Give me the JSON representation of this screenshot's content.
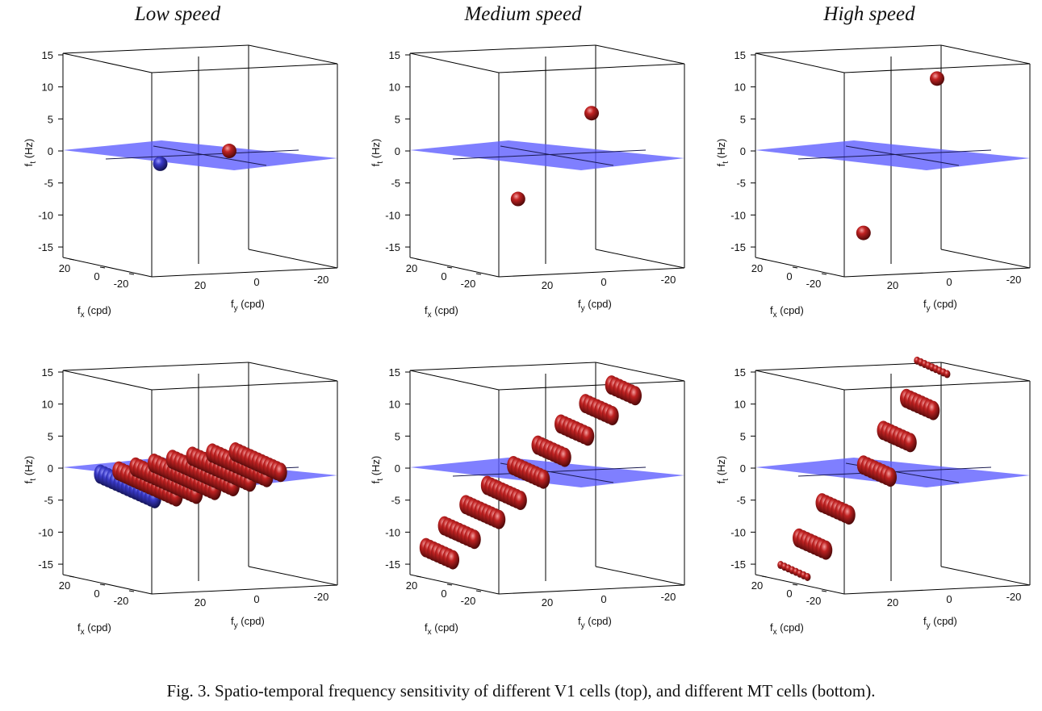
{
  "figure": {
    "columns": [
      "Low speed",
      "Medium speed",
      "High speed"
    ],
    "caption": "Fig. 3. Spatio-temporal frequency sensitivity of different V1 cells (top), and different MT cells  (bottom)."
  },
  "colors": {
    "plane": "#5b5bff",
    "blob": "#a01818",
    "blob_blue": "#2a2a9a",
    "frame": "#000000"
  },
  "chart_data": [
    {
      "type": "scatter",
      "id": "v1-low",
      "title": "",
      "xlabel": "f_x (cpd)",
      "ylabel": "f_y (cpd)",
      "zlabel": "f_t (Hz)",
      "xticks": [
        "20",
        "0",
        "-20"
      ],
      "yticks": [
        "20",
        "0",
        "-20"
      ],
      "zticks": [
        "15",
        "10",
        "5",
        "0",
        "-5",
        "-10",
        "-15"
      ],
      "zlim": [
        -16,
        15
      ],
      "grid": false,
      "planes": [
        0
      ],
      "blobs": [
        {
          "ft": -2,
          "s": -0.25,
          "len": 0,
          "color": "blue"
        },
        {
          "ft": 0,
          "s": 0.2,
          "len": 0,
          "color": "red"
        }
      ]
    },
    {
      "type": "scatter",
      "id": "v1-medium",
      "title": "",
      "xlabel": "f_x (cpd)",
      "ylabel": "f_y (cpd)",
      "zlabel": "f_t (Hz)",
      "xticks": [
        "20",
        "0",
        "-20"
      ],
      "yticks": [
        "20",
        "0",
        "-20"
      ],
      "zticks": [
        "15",
        "10",
        "5",
        "0",
        "-5",
        "-10",
        "-15"
      ],
      "zlim": [
        -16,
        15
      ],
      "grid": false,
      "planes": [
        0
      ],
      "blobs": [
        {
          "ft": -7.5,
          "s": -0.18,
          "len": 0,
          "color": "red"
        },
        {
          "ft": 5.9,
          "s": 0.3,
          "len": 0,
          "color": "red"
        }
      ]
    },
    {
      "type": "scatter",
      "id": "v1-high",
      "title": "",
      "xlabel": "f_x (cpd)",
      "ylabel": "f_y (cpd)",
      "zlabel": "f_t (Hz)",
      "xticks": [
        "20",
        "0",
        "-20"
      ],
      "yticks": [
        "20",
        "0",
        "-20"
      ],
      "zticks": [
        "15",
        "10",
        "5",
        "0",
        "-5",
        "-10",
        "-15"
      ],
      "zlim": [
        -16,
        15
      ],
      "grid": false,
      "planes": [
        0
      ],
      "blobs": [
        {
          "ft": -12.8,
          "s": -0.18,
          "len": 0,
          "color": "red"
        },
        {
          "ft": 11.3,
          "s": 0.3,
          "len": 0,
          "color": "red"
        }
      ]
    },
    {
      "type": "scatter",
      "id": "mt-low",
      "title": "",
      "xlabel": "f_x (cpd)",
      "ylabel": "f_y (cpd)",
      "zlabel": "f_t (Hz)",
      "xticks": [
        "20",
        "0",
        "-20"
      ],
      "yticks": [
        "20",
        "0",
        "-20"
      ],
      "zticks": [
        "15",
        "10",
        "5",
        "0",
        "-5",
        "-10",
        "-15"
      ],
      "zlim": [
        -16,
        15
      ],
      "grid": false,
      "planes": [
        0
      ],
      "blobs": [
        {
          "ft": -3,
          "s": -0.45,
          "len": 0.38,
          "color": "blue"
        },
        {
          "ft": -2.6,
          "s": -0.32,
          "len": 0.4,
          "color": "red"
        },
        {
          "ft": -2.1,
          "s": -0.2,
          "len": 0.42,
          "color": "red"
        },
        {
          "ft": -1.5,
          "s": -0.08,
          "len": 0.42,
          "color": "red"
        },
        {
          "ft": -0.9,
          "s": 0.04,
          "len": 0.42,
          "color": "red"
        },
        {
          "ft": -0.3,
          "s": 0.16,
          "len": 0.4,
          "color": "red"
        },
        {
          "ft": 0.3,
          "s": 0.28,
          "len": 0.38,
          "color": "red"
        },
        {
          "ft": 0.8,
          "s": 0.4,
          "len": 0.32,
          "color": "red"
        }
      ]
    },
    {
      "type": "scatter",
      "id": "mt-medium",
      "title": "",
      "xlabel": "f_x (cpd)",
      "ylabel": "f_y (cpd)",
      "zlabel": "f_t (Hz)",
      "xticks": [
        "20",
        "0",
        "-20"
      ],
      "yticks": [
        "20",
        "0",
        "-20"
      ],
      "zticks": [
        "15",
        "10",
        "5",
        "0",
        "-5",
        "-10",
        "-15"
      ],
      "zlim": [
        -16,
        15
      ],
      "grid": false,
      "planes": [
        0
      ],
      "blobs": [
        {
          "ft": -13.5,
          "s": -0.68,
          "len": 0.2,
          "color": "red"
        },
        {
          "ft": -10.2,
          "s": -0.55,
          "len": 0.22,
          "color": "red"
        },
        {
          "ft": -7,
          "s": -0.4,
          "len": 0.24,
          "color": "red"
        },
        {
          "ft": -4,
          "s": -0.26,
          "len": 0.24,
          "color": "red"
        },
        {
          "ft": -0.8,
          "s": -0.1,
          "len": 0.22,
          "color": "red"
        },
        {
          "ft": 2.5,
          "s": 0.05,
          "len": 0.2,
          "color": "red"
        },
        {
          "ft": 5.8,
          "s": 0.2,
          "len": 0.2,
          "color": "red"
        },
        {
          "ft": 9,
          "s": 0.36,
          "len": 0.2,
          "color": "red"
        },
        {
          "ft": 12,
          "s": 0.52,
          "len": 0.18,
          "color": "red"
        }
      ]
    },
    {
      "type": "scatter",
      "id": "mt-high",
      "title": "",
      "xlabel": "f_x (cpd)",
      "ylabel": "f_y (cpd)",
      "zlabel": "f_t (Hz)",
      "xticks": [
        "20",
        "0",
        "-20"
      ],
      "yticks": [
        "20",
        "0",
        "-20"
      ],
      "zticks": [
        "15",
        "10",
        "5",
        "0",
        "-5",
        "-10",
        "-15"
      ],
      "zlim": [
        -16,
        15
      ],
      "grid": false,
      "planes": [
        0
      ],
      "blobs": [
        {
          "ft": -16.2,
          "s": -0.62,
          "len": 0.2,
          "color": "red",
          "thin": true
        },
        {
          "ft": -12,
          "s": -0.5,
          "len": 0.2,
          "color": "red"
        },
        {
          "ft": -6.5,
          "s": -0.35,
          "len": 0.2,
          "color": "red"
        },
        {
          "ft": -0.6,
          "s": -0.08,
          "len": 0.2,
          "color": "red"
        },
        {
          "ft": 4.8,
          "s": 0.05,
          "len": 0.2,
          "color": "red"
        },
        {
          "ft": 9.8,
          "s": 0.2,
          "len": 0.2,
          "color": "red"
        },
        {
          "ft": 15.6,
          "s": 0.28,
          "len": 0.22,
          "color": "red",
          "thin": true
        }
      ]
    }
  ]
}
